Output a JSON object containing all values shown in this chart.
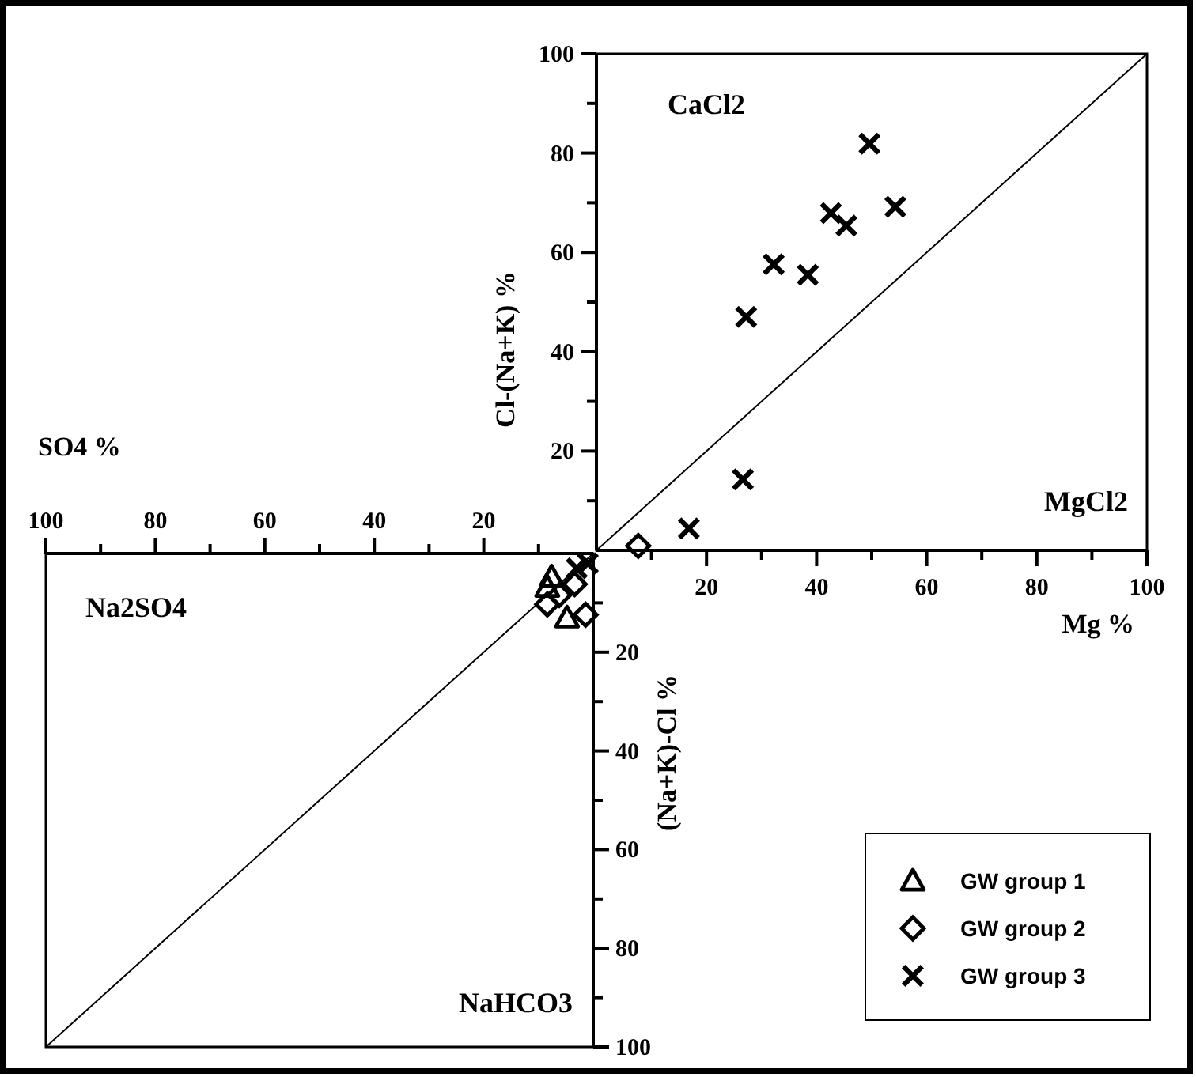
{
  "chart_data": [
    {
      "type": "scatter",
      "xlabel": "Mg %",
      "ylabel": "Cl-(Na+K) %",
      "annotations": [
        "CaCl2",
        "MgCl2"
      ],
      "xlim": [
        0,
        100
      ],
      "ylim": [
        0,
        100
      ],
      "xticks": [
        {
          "value": 10,
          "label": null
        },
        20,
        {
          "value": 30,
          "label": null
        },
        40,
        {
          "value": 50,
          "label": null
        },
        60,
        {
          "value": 70,
          "label": null
        },
        80,
        {
          "value": 90,
          "label": null
        },
        100
      ],
      "yticks": [
        {
          "value": 10,
          "label": null
        },
        20,
        {
          "value": 30,
          "label": null
        },
        40,
        {
          "value": 50,
          "label": null
        },
        60,
        {
          "value": 70,
          "label": null
        },
        80,
        {
          "value": 90,
          "label": null
        },
        100
      ],
      "grid": false,
      "series": [
        {
          "color": "#000000",
          "marker": "diamond",
          "x": [
            7.6
          ],
          "values": [
            0.9
          ]
        },
        {
          "color": "#000000",
          "marker": "cross",
          "x": [
            27.2,
            32.2,
            38.4,
            42.6,
            45.4,
            49.6,
            54.3,
            26.6,
            16.8
          ],
          "values": [
            47,
            57.6,
            55.5,
            67.9,
            65.4,
            81.9,
            69.2,
            14.3,
            4.4
          ]
        },
        {
          "type": "line",
          "color": "#000000",
          "marker": "none",
          "line_style": "solid",
          "x": [
            0,
            100
          ],
          "values": [
            0,
            100
          ]
        }
      ]
    },
    {
      "type": "scatter",
      "xlabel": "SO4 %",
      "ylabel": "(Na+K)-Cl %",
      "annotations": [
        "Na2SO4",
        "NaHCO3"
      ],
      "xlim": [
        100,
        0
      ],
      "ylim": [
        100,
        0
      ],
      "xticks": [
        100,
        {
          "value": 90,
          "label": null
        },
        80,
        {
          "value": 70,
          "label": null
        },
        60,
        {
          "value": 50,
          "label": null
        },
        40,
        {
          "value": 30,
          "label": null
        },
        20,
        {
          "value": 10,
          "label": null
        }
      ],
      "yticks": [
        100,
        {
          "value": 90,
          "label": null
        },
        80,
        {
          "value": 70,
          "label": null
        },
        60,
        {
          "value": 50,
          "label": null
        },
        40,
        {
          "value": 30,
          "label": null
        },
        20,
        {
          "value": 10,
          "label": null
        }
      ],
      "grid": false,
      "legend": "right",
      "series": [
        {
          "name": "GW group 1",
          "color": "#000000",
          "marker": "triangle",
          "x": [
            7.6,
            8.4,
            4.8
          ],
          "values": [
            4.7,
            6.8,
            13
          ]
        },
        {
          "name": "GW group 2",
          "color": "#000000",
          "marker": "diamond",
          "x": [
            8.4,
            6.2,
            1.4,
            3.4
          ],
          "values": [
            10.3,
            8.4,
            12.4,
            6.2
          ]
        },
        {
          "name": "GW group 3",
          "color": "#000000",
          "marker": "cross",
          "x": [
            1,
            3
          ],
          "values": [
            2,
            3
          ]
        },
        {
          "type": "line",
          "color": "#000000",
          "marker": "none",
          "line_style": "solid",
          "x": [
            0,
            100
          ],
          "values": [
            0,
            100
          ]
        }
      ]
    }
  ]
}
